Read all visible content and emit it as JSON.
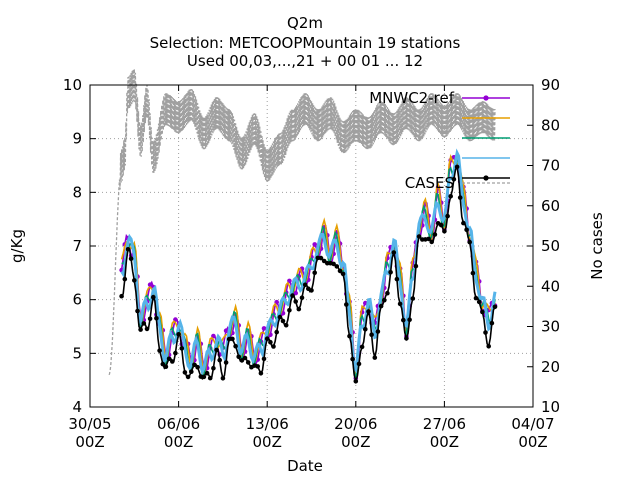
{
  "chart_data": {
    "type": "line",
    "title_lines": [
      "Q2m",
      "Selection: METCOOPMountain     19 stations",
      "Used 00,03,...,21 + 00 01 ... 12"
    ],
    "xlabel": "Date",
    "ylabel": "g/Kg",
    "y2label": "No cases",
    "x_range": [
      "2023-05-30T00:00",
      "2023-07-04T00:00"
    ],
    "y_range": [
      4,
      10
    ],
    "y2_range": [
      10,
      90
    ],
    "x_ticks": [
      {
        "value": "2023-05-30T00:00",
        "line1": "30/05",
        "line2": "00Z"
      },
      {
        "value": "2023-06-06T00:00",
        "line1": "06/06",
        "line2": "00Z"
      },
      {
        "value": "2023-06-13T00:00",
        "line1": "13/06",
        "line2": "00Z"
      },
      {
        "value": "2023-06-20T00:00",
        "line1": "20/06",
        "line2": "00Z"
      },
      {
        "value": "2023-06-27T00:00",
        "line1": "27/06",
        "line2": "00Z"
      },
      {
        "value": "2023-07-04T00:00",
        "line1": "04/07",
        "line2": "00Z"
      }
    ],
    "y_ticks": [
      "4",
      "5",
      "6",
      "7",
      "8",
      "9",
      "10"
    ],
    "y2_ticks": [
      "10",
      "20",
      "30",
      "40",
      "50",
      "60",
      "70",
      "80",
      "90"
    ],
    "grid": true,
    "legend_position": "top-right",
    "series": [
      {
        "name": "MNWC2-ref",
        "color": "#9400d3",
        "offset": 0.05,
        "marker": "circle"
      },
      {
        "name": "",
        "color": "#e69f00",
        "offset": 0.1
      },
      {
        "name": "",
        "color": "#009e73",
        "offset": 0.02
      },
      {
        "name": "",
        "color": "#56b4e9",
        "offset": 0.0
      },
      {
        "name": "",
        "color": "#000000",
        "offset": -0.3,
        "marker": "circle"
      }
    ],
    "obs_anchors": [
      [
        "2023-06-01T12:00",
        6.5
      ],
      [
        "2023-06-02T00:00",
        7.1
      ],
      [
        "2023-06-02T12:00",
        6.8
      ],
      [
        "2023-06-03T00:00",
        5.6
      ],
      [
        "2023-06-03T12:00",
        5.9
      ],
      [
        "2023-06-04T00:00",
        6.2
      ],
      [
        "2023-06-04T12:00",
        5.5
      ],
      [
        "2023-06-05T00:00",
        4.9
      ],
      [
        "2023-06-05T12:00",
        5.3
      ],
      [
        "2023-06-06T00:00",
        5.5
      ],
      [
        "2023-06-06T12:00",
        5.1
      ],
      [
        "2023-06-07T00:00",
        4.8
      ],
      [
        "2023-06-07T12:00",
        5.2
      ],
      [
        "2023-06-08T00:00",
        4.7
      ],
      [
        "2023-06-08T12:00",
        5.0
      ],
      [
        "2023-06-09T00:00",
        5.2
      ],
      [
        "2023-06-09T12:00",
        5.0
      ],
      [
        "2023-06-10T00:00",
        5.4
      ],
      [
        "2023-06-10T12:00",
        5.6
      ],
      [
        "2023-06-11T00:00",
        5.0
      ],
      [
        "2023-06-11T12:00",
        5.3
      ],
      [
        "2023-06-12T00:00",
        4.9
      ],
      [
        "2023-06-12T12:00",
        5.1
      ],
      [
        "2023-06-13T00:00",
        5.4
      ],
      [
        "2023-06-14T00:00",
        5.8
      ],
      [
        "2023-06-15T00:00",
        6.2
      ],
      [
        "2023-06-16T00:00",
        6.4
      ],
      [
        "2023-06-17T00:00",
        6.9
      ],
      [
        "2023-06-17T12:00",
        7.2
      ],
      [
        "2023-06-18T00:00",
        6.8
      ],
      [
        "2023-06-18T12:00",
        7.1
      ],
      [
        "2023-06-19T00:00",
        6.6
      ],
      [
        "2023-06-19T12:00",
        5.8
      ],
      [
        "2023-06-20T00:00",
        4.6
      ],
      [
        "2023-06-20T12:00",
        5.6
      ],
      [
        "2023-06-21T00:00",
        5.9
      ],
      [
        "2023-06-21T12:00",
        5.4
      ],
      [
        "2023-06-22T00:00",
        6.0
      ],
      [
        "2023-06-22T12:00",
        6.6
      ],
      [
        "2023-06-23T00:00",
        7.0
      ],
      [
        "2023-06-23T12:00",
        6.4
      ],
      [
        "2023-06-24T00:00",
        5.4
      ],
      [
        "2023-06-24T12:00",
        6.5
      ],
      [
        "2023-06-25T00:00",
        7.3
      ],
      [
        "2023-06-25T12:00",
        7.6
      ],
      [
        "2023-06-26T00:00",
        7.2
      ],
      [
        "2023-06-26T12:00",
        7.9
      ],
      [
        "2023-06-27T00:00",
        7.4
      ],
      [
        "2023-06-27T12:00",
        8.4
      ],
      [
        "2023-06-28T00:00",
        8.6
      ],
      [
        "2023-06-28T12:00",
        7.9
      ],
      [
        "2023-06-29T00:00",
        7.2
      ],
      [
        "2023-06-29T12:00",
        6.5
      ],
      [
        "2023-06-30T00:00",
        5.9
      ],
      [
        "2023-06-30T12:00",
        5.6
      ],
      [
        "2023-07-01T00:00",
        6.0
      ]
    ],
    "cases_anchors": [
      [
        "2023-05-31T12:00",
        18
      ],
      [
        "2023-06-01T12:00",
        70
      ],
      [
        "2023-06-01T18:00",
        73
      ],
      [
        "2023-06-02T00:00",
        88
      ],
      [
        "2023-06-02T12:00",
        90
      ],
      [
        "2023-06-03T00:00",
        76
      ],
      [
        "2023-06-03T12:00",
        86
      ],
      [
        "2023-06-04T00:00",
        72
      ],
      [
        "2023-06-05T00:00",
        84
      ],
      [
        "2023-06-06T00:00",
        82
      ],
      [
        "2023-06-07T00:00",
        85
      ],
      [
        "2023-06-08T00:00",
        78
      ],
      [
        "2023-06-09T00:00",
        83
      ],
      [
        "2023-06-10T00:00",
        80
      ],
      [
        "2023-06-11T00:00",
        73
      ],
      [
        "2023-06-12T00:00",
        79
      ],
      [
        "2023-06-13T00:00",
        70
      ],
      [
        "2023-06-14T00:00",
        74
      ],
      [
        "2023-06-15T00:00",
        80
      ],
      [
        "2023-06-16T00:00",
        84
      ],
      [
        "2023-06-17T00:00",
        80
      ],
      [
        "2023-06-18T00:00",
        83
      ],
      [
        "2023-06-19T00:00",
        77
      ],
      [
        "2023-06-20T00:00",
        80
      ],
      [
        "2023-06-21T00:00",
        78
      ],
      [
        "2023-06-22T00:00",
        82
      ],
      [
        "2023-06-23T00:00",
        79
      ],
      [
        "2023-06-24T00:00",
        83
      ],
      [
        "2023-06-25T00:00",
        80
      ],
      [
        "2023-06-26T00:00",
        84
      ],
      [
        "2023-06-27T00:00",
        81
      ],
      [
        "2023-06-28T00:00",
        84
      ],
      [
        "2023-06-29T00:00",
        80
      ],
      [
        "2023-06-30T00:00",
        82
      ],
      [
        "2023-07-01T00:00",
        80
      ]
    ],
    "cases_legend": "CASES"
  }
}
